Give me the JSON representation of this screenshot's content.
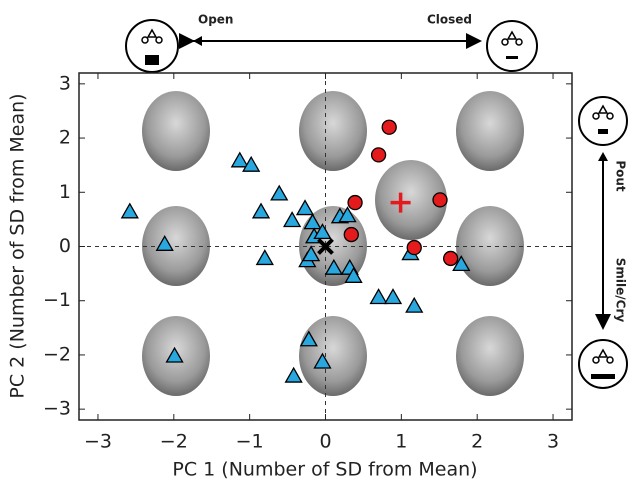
{
  "chart_data": {
    "type": "scatter",
    "x_label": "PC 1 (Number of SD from Mean)",
    "y_label": "PC 2 (Number of SD from Mean)",
    "annotations": [
      "Open",
      "Closed",
      "Pout",
      "Smile/Cry"
    ],
    "xlim": [
      -3.25,
      3.25
    ],
    "ylim": [
      -3.2,
      3.2
    ],
    "xticks": [
      {
        "value": -3,
        "label": "−3"
      },
      {
        "value": -2,
        "label": "−2"
      },
      {
        "value": -1,
        "label": "−1"
      },
      0,
      1,
      2,
      3
    ],
    "yticks": [
      {
        "value": -3,
        "label": "−3"
      },
      {
        "value": -2,
        "label": "−2"
      },
      {
        "value": -1,
        "label": "−1"
      },
      0,
      1,
      2,
      3
    ],
    "series": [
      {
        "color": "#29a8e0",
        "marker": "triangle",
        "x": [
          -2.58,
          -2.12,
          -1.99,
          -1.13,
          -0.98,
          -0.85,
          -0.8,
          -0.61,
          -0.44,
          -0.27,
          -0.17,
          -0.15,
          -0.04,
          -0.24,
          -0.19,
          -0.22,
          -0.42,
          -0.04,
          0.11,
          0.19,
          0.29,
          0.32,
          0.37,
          0.7,
          0.89,
          1.17,
          1.12,
          1.79
        ],
        "y": [
          0.64,
          0.04,
          -2.02,
          1.58,
          1.5,
          0.64,
          -0.22,
          0.97,
          0.48,
          0.7,
          0.44,
          0.18,
          0.26,
          -0.26,
          -0.15,
          -1.72,
          -2.39,
          -2.13,
          -0.4,
          0.55,
          0.57,
          -0.4,
          -0.55,
          -0.94,
          -0.94,
          -1.1,
          -0.13,
          -0.33
        ]
      },
      {
        "color": "#e41a1c",
        "marker": "circle",
        "x": [
          0.84,
          0.7,
          0.39,
          0.34,
          1.51,
          1.17,
          1.65
        ],
        "y": [
          2.2,
          1.69,
          0.81,
          0.22,
          0.86,
          -0.02,
          -0.22
        ]
      },
      {
        "color": "#000000",
        "marker": "x",
        "x": [
          0
        ],
        "y": [
          0
        ]
      },
      {
        "color": "#e41a1c",
        "marker": "plus",
        "x": [
          0.99
        ],
        "y": [
          0.81
        ]
      }
    ]
  }
}
